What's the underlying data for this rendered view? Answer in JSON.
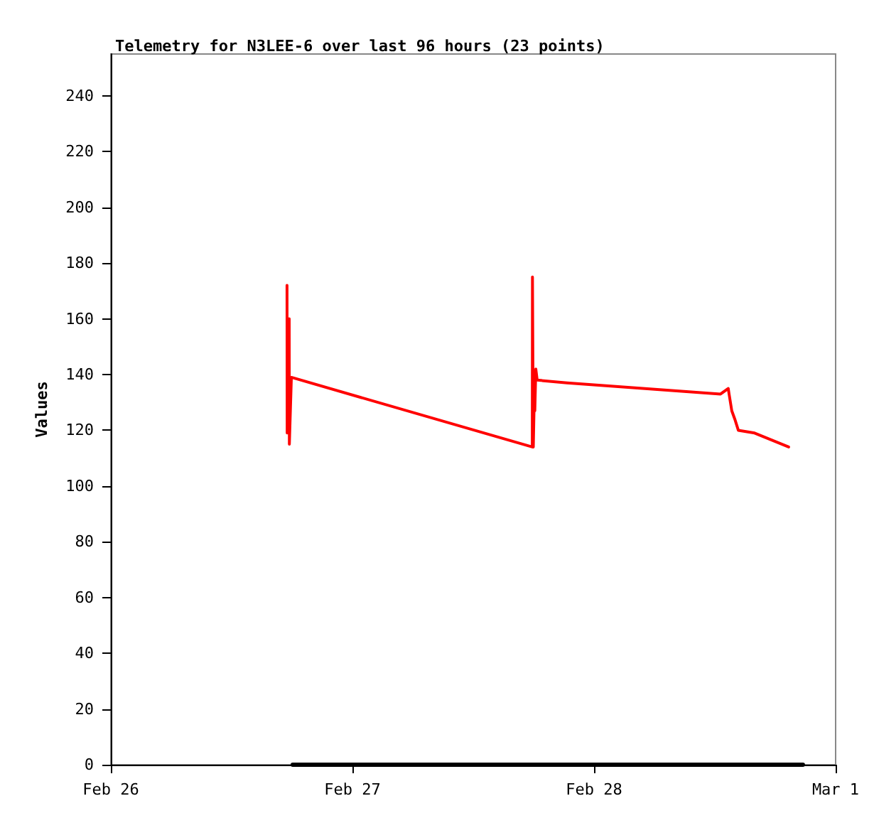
{
  "chart_data": {
    "type": "line",
    "title": "Telemetry for N3LEE-6 over last 96 hours (23 points)",
    "ylabel": "Values",
    "xlim": [
      "--02-26",
      "--03-01"
    ],
    "xticks": [
      {
        "value": "--02-26",
        "label": "Feb 26"
      },
      {
        "value": "--02-27",
        "label": "Feb 27"
      },
      {
        "value": "--02-28",
        "label": "Feb 28"
      },
      {
        "value": "--03-01",
        "label": "Mar 1"
      }
    ],
    "ylim": [
      0,
      255
    ],
    "yticks": [
      0,
      20,
      40,
      60,
      80,
      100,
      120,
      140,
      160,
      180,
      200,
      220,
      240
    ],
    "grid": false,
    "marker": "none",
    "line_style": "solid",
    "series": [
      {
        "color": "#ff0000",
        "x": [
          "--02-26T17:30",
          "--02-26T17:31",
          "--02-26T17:43",
          "--02-26T17:44",
          "--02-26T17:56",
          "--02-27T17:52",
          "--02-27T17:53",
          "--02-27T17:58",
          "--02-27T18:04",
          "--02-27T18:07",
          "--02-27T18:13",
          "--02-27T18:21",
          "--02-27T21:19",
          "--02-28T12:34",
          "--02-28T13:20",
          "--02-28T13:25",
          "--02-28T13:41",
          "--02-28T13:59",
          "--02-28T14:20",
          "--02-28T15:57",
          "--02-28T19:20"
        ],
        "values": [
          172,
          119,
          160,
          115,
          139,
          114,
          175,
          114,
          133,
          127,
          142,
          138,
          137,
          133,
          135,
          133,
          127,
          124,
          120,
          119,
          114
        ]
      },
      {
        "color": "#000000",
        "x": [
          "--02-26T18:04",
          "--02-28T20:45"
        ],
        "values": [
          0,
          0
        ]
      }
    ]
  }
}
